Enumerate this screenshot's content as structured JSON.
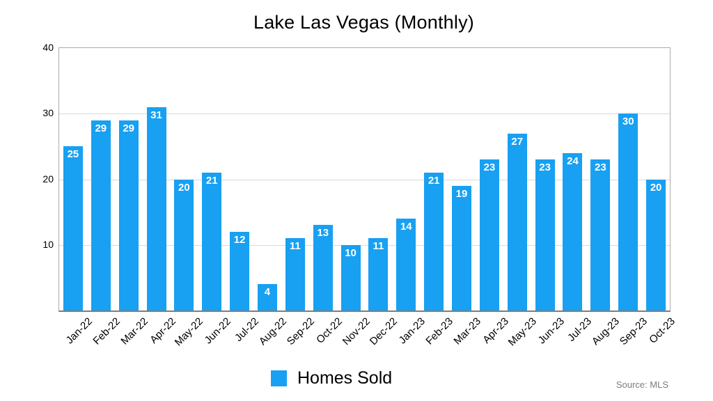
{
  "title": "Lake Las Vegas (Monthly)",
  "legend": {
    "label": "Homes Sold"
  },
  "source": "Source: MLS",
  "chart_data": {
    "type": "bar",
    "title": "Lake Las Vegas (Monthly)",
    "categories": [
      "Jan-22",
      "Feb-22",
      "Mar-22",
      "Apr-22",
      "May-22",
      "Jun-22",
      "Jul-22",
      "Aug-22",
      "Sep-22",
      "Oct-22",
      "Nov-22",
      "Dec-22",
      "Jan-23",
      "Feb-23",
      "Mar-23",
      "Apr-23",
      "May-23",
      "Jun-23",
      "Jul-23",
      "Aug-23",
      "Sep-23",
      "Oct-23"
    ],
    "series": [
      {
        "name": "Homes Sold",
        "values": [
          25,
          29,
          29,
          31,
          20,
          21,
          12,
          4,
          11,
          13,
          10,
          11,
          14,
          21,
          19,
          23,
          27,
          23,
          24,
          23,
          30,
          20
        ]
      }
    ],
    "xlabel": "",
    "ylabel": "",
    "ylim": [
      0,
      40
    ],
    "yticks": [
      10,
      20,
      30,
      40
    ],
    "grid": true,
    "value_labels": true,
    "legend_position": "bottom",
    "bar_color": "#18a0f2",
    "gridline_color": "#d9d9d9",
    "frame_color": "#ababab",
    "axis_color": "#7d7d7d",
    "value_label_color": "#ffffff",
    "source": "Source: MLS"
  }
}
